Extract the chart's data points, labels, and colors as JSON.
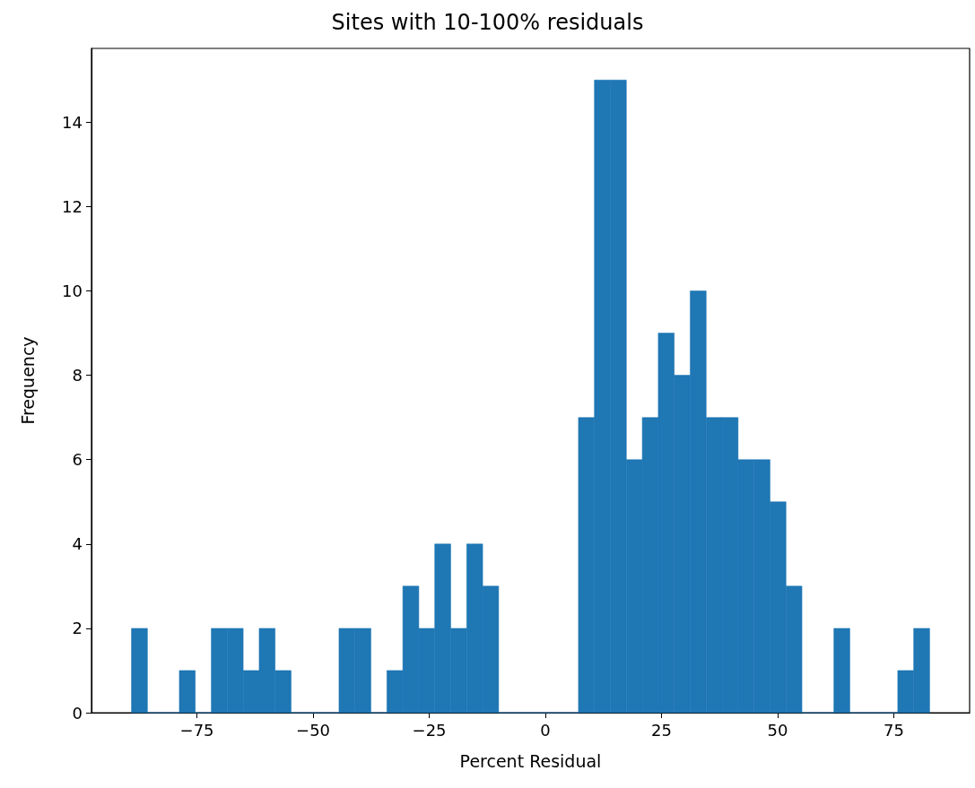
{
  "chart_data": {
    "type": "histogram",
    "title": "Sites with 10-100% residuals",
    "xlabel": "Percent Residual",
    "ylabel": "Frequency",
    "color": "#1f77b4",
    "bins": [
      -89.1,
      -85.66,
      -82.23,
      -78.79,
      -75.36,
      -71.92,
      -68.48,
      -65.05,
      -61.61,
      -58.18,
      -54.74,
      -51.3,
      -47.87,
      -44.43,
      -41.0,
      -37.56,
      -34.12,
      -30.69,
      -27.25,
      -23.82,
      -20.38,
      -16.94,
      -13.51,
      -10.07,
      -6.64,
      -3.2,
      0.24,
      3.67,
      7.11,
      10.54,
      13.98,
      17.42,
      20.85,
      24.29,
      27.72,
      31.16,
      34.6,
      38.03,
      41.47,
      44.9,
      48.34,
      51.78,
      55.21,
      58.65,
      62.08,
      65.52,
      68.96,
      72.39,
      75.83,
      79.26,
      82.7
    ],
    "values": [
      2,
      0,
      0,
      1,
      0,
      2,
      2,
      1,
      2,
      1,
      0,
      0,
      0,
      2,
      2,
      0,
      1,
      3,
      2,
      4,
      2,
      4,
      3,
      0,
      0,
      0,
      0,
      0,
      7,
      15,
      15,
      6,
      7,
      9,
      8,
      10,
      7,
      7,
      6,
      6,
      5,
      3,
      0,
      0,
      2,
      0,
      0,
      0,
      1,
      2
    ],
    "xlim": [
      -97.7,
      91.3
    ],
    "xticks": [
      -75,
      -50,
      -25,
      0,
      25,
      50,
      75
    ],
    "ylim": [
      0,
      15.75
    ],
    "yticks": [
      0,
      2,
      4,
      6,
      8,
      10,
      12,
      14
    ],
    "grid": false
  }
}
